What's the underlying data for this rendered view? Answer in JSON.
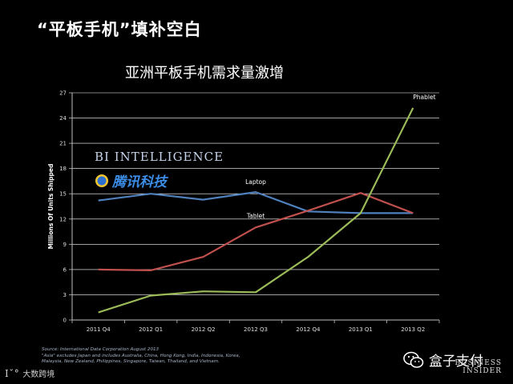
{
  "slide_title": "“平板手机”填补空白",
  "watermark_bi": "BI INTELLIGENCE",
  "watermark_tencent": "腾讯科技",
  "source_lines": [
    "Source: International Data Corporation August 2013",
    "\"Asia\" excludes Japan and includes Australia, China, Hong Kong, India, Indonesia, Korea,",
    "Malaysia, New Zealand, Philippines, Singapore, Taiwan, Thailand, and Vietnam."
  ],
  "wechat_label": "盒子支付",
  "bi_logo": [
    "BUSINESS",
    "INSIDER"
  ],
  "bottom_left_logo": "大数跨境",
  "colors": {
    "laptop": "#4f81bd",
    "tablet": "#c0504d",
    "phablet": "#9bbb59",
    "axis": "#bfbfbf",
    "grid": "#ffffff"
  },
  "chart_data": {
    "type": "line",
    "title": "亚洲平板手机需求量激增",
    "xlabel": "",
    "ylabel": "Millions Of Units Shipped",
    "ylim": [
      0,
      27
    ],
    "yticks": [
      0,
      3,
      6,
      9,
      12,
      15,
      18,
      21,
      24,
      27
    ],
    "categories": [
      "2011 Q4",
      "2012 Q1",
      "2012 Q2",
      "2012 Q3",
      "2012 Q4",
      "2013 Q1",
      "2013 Q2"
    ],
    "grid": true,
    "series": [
      {
        "name": "Laptop",
        "values": [
          14.2,
          15.0,
          14.3,
          15.2,
          12.9,
          12.7,
          12.7
        ]
      },
      {
        "name": "Tablet",
        "values": [
          6.0,
          5.9,
          7.5,
          11.0,
          13.0,
          15.1,
          12.7
        ]
      },
      {
        "name": "Phablet",
        "values": [
          0.9,
          2.9,
          3.4,
          3.3,
          7.5,
          12.7,
          25.2
        ]
      }
    ]
  }
}
